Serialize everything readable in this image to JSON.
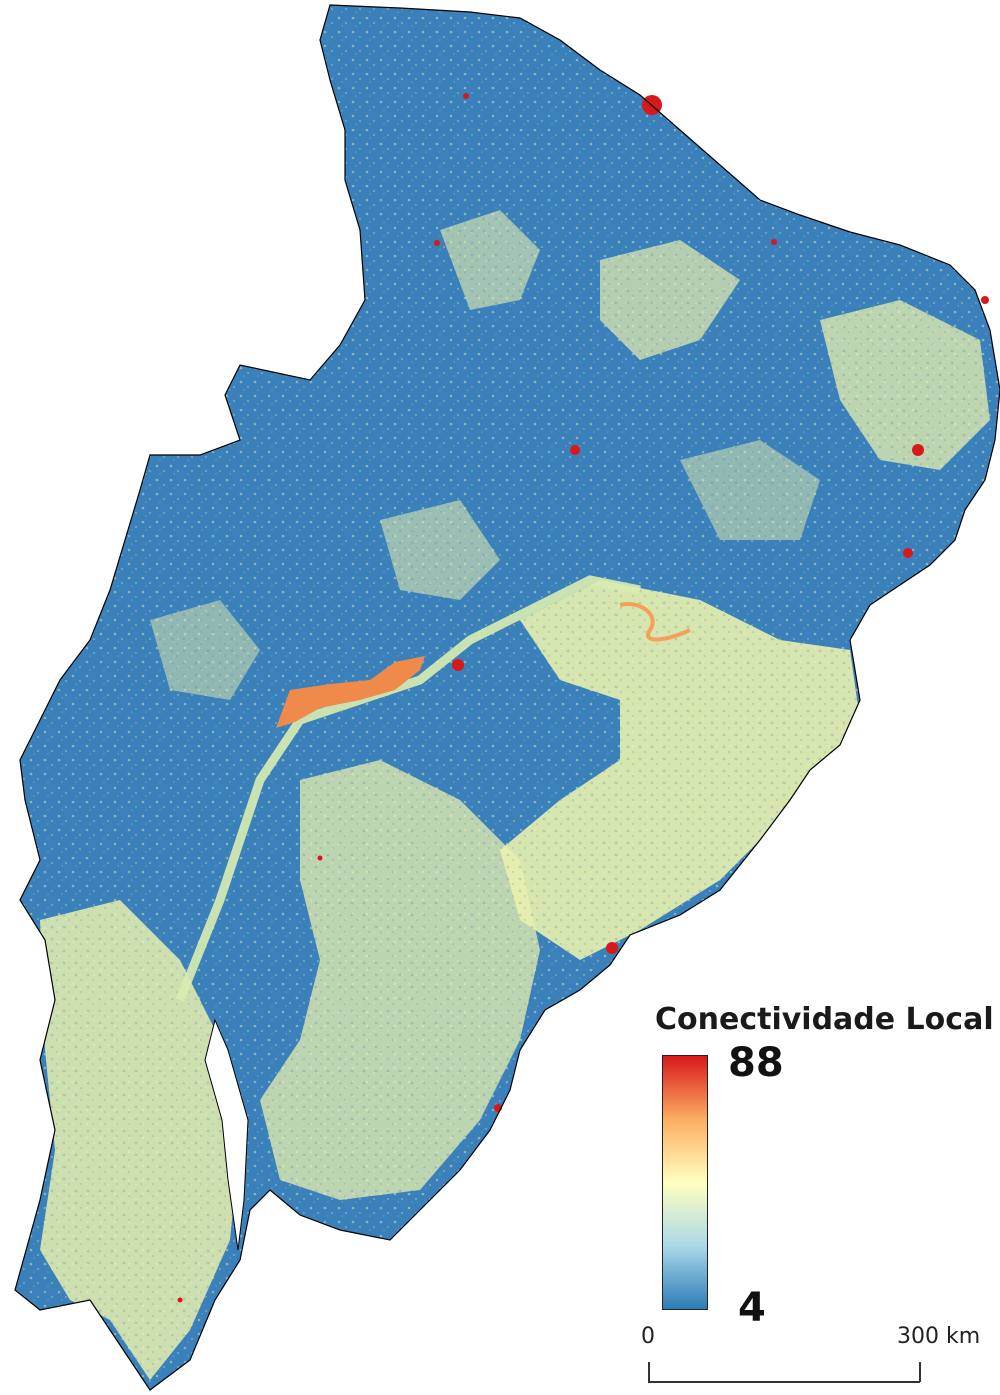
{
  "legend": {
    "title": "Conectividade Local",
    "max_label": "88",
    "min_label": "4",
    "colors": [
      "#2c7bb6",
      "#abd9e9",
      "#ffffbf",
      "#fdae61",
      "#d7191c"
    ]
  },
  "scale_bar": {
    "start_label": "0",
    "end_label": "300 km"
  },
  "map_colors": {
    "low": "#3a80bb",
    "mid": "#e9f0ad",
    "high": "#d7191c",
    "river_high": "#f08a4b",
    "outline": "#000000"
  }
}
